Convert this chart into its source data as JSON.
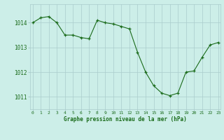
{
  "x": [
    0,
    1,
    2,
    3,
    4,
    5,
    6,
    7,
    8,
    9,
    10,
    11,
    12,
    13,
    14,
    15,
    16,
    17,
    18,
    19,
    20,
    21,
    22,
    23
  ],
  "y": [
    1014.0,
    1014.2,
    1014.25,
    1014.0,
    1013.5,
    1013.5,
    1013.4,
    1013.35,
    1014.1,
    1014.0,
    1013.95,
    1013.85,
    1013.75,
    1012.8,
    1012.0,
    1011.45,
    1011.15,
    1011.05,
    1011.15,
    1012.0,
    1012.05,
    1012.6,
    1013.1,
    1013.2
  ],
  "line_color": "#1a6b1a",
  "marker_color": "#1a6b1a",
  "bg_color": "#cceee8",
  "grid_color": "#aacccc",
  "xlabel": "Graphe pression niveau de la mer (hPa)",
  "xlabel_color": "#1a6b1a",
  "tick_color": "#1a6b1a",
  "ylim": [
    1010.5,
    1014.75
  ],
  "yticks": [
    1011,
    1012,
    1013,
    1014
  ],
  "xticks": [
    0,
    1,
    2,
    3,
    4,
    5,
    6,
    7,
    8,
    9,
    10,
    11,
    12,
    13,
    14,
    15,
    16,
    17,
    18,
    19,
    20,
    21,
    22,
    23
  ]
}
